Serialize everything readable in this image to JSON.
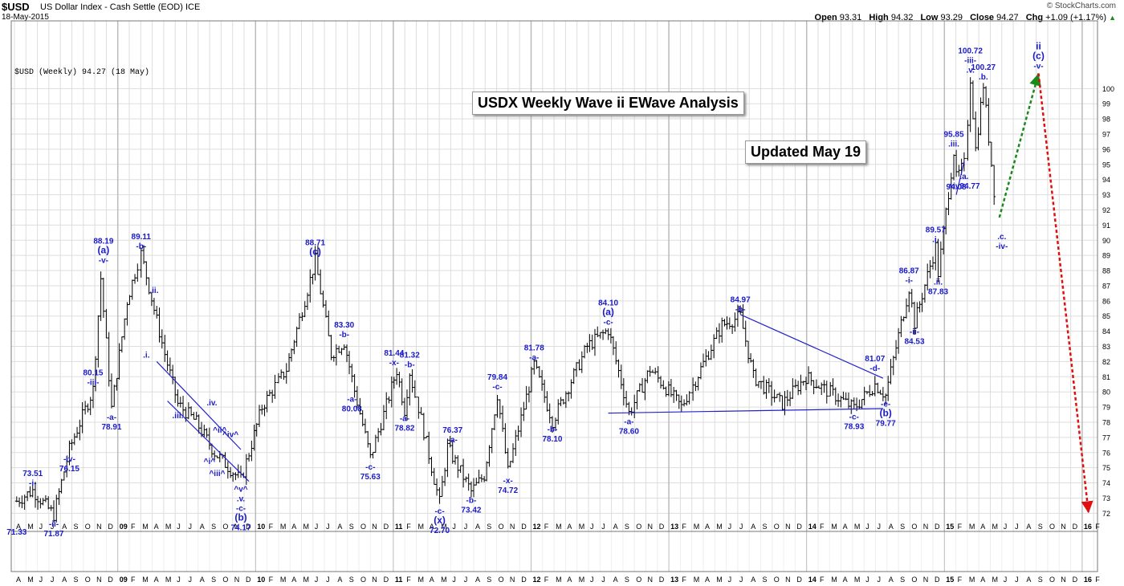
{
  "header": {
    "symbol": "$USD",
    "description": "US Dollar Index - Cash Settle (EOD)  ICE",
    "date": "18-May-2015",
    "brand": "© StockCharts.com",
    "open_label": "Open",
    "open": "93.31",
    "high_label": "High",
    "high": "94.32",
    "low_label": "Low",
    "low": "93.29",
    "close_label": "Close",
    "close": "94.27",
    "chg_label": "Chg",
    "chg": "+1.09 (+1.17%)"
  },
  "legend_text": "$USD (Weekly) 94.27 (18 May)",
  "title_box": "USDX Weekly Wave ii EWave Analysis",
  "updated_box": "Updated May 19",
  "colors": {
    "bars": "#000000",
    "labels": "#1a1acc",
    "green_arrow": "#1a8a1a",
    "red_arrow": "#e01010",
    "grid": "#dddddd",
    "panel_border": "#777777"
  },
  "chart_data": {
    "type": "ohlc-bar",
    "frequency": "weekly",
    "ylim": [
      71.33,
      101.5
    ],
    "y_ticks": [
      72,
      73,
      74,
      75,
      76,
      77,
      78,
      79,
      80,
      81,
      82,
      83,
      84,
      85,
      86,
      87,
      88,
      89,
      90,
      91,
      92,
      93,
      94,
      95,
      96,
      97,
      98,
      99,
      100
    ],
    "x_labels": [
      "A",
      "M",
      "J",
      "J",
      "A",
      "S",
      "O",
      "N",
      "D",
      "09",
      "F",
      "M",
      "A",
      "M",
      "J",
      "J",
      "A",
      "S",
      "O",
      "N",
      "D",
      "10",
      "F",
      "M",
      "A",
      "M",
      "J",
      "J",
      "A",
      "S",
      "O",
      "N",
      "D",
      "11",
      "F",
      "M",
      "A",
      "M",
      "J",
      "J",
      "A",
      "S",
      "O",
      "N",
      "D",
      "12",
      "F",
      "M",
      "A",
      "M",
      "J",
      "J",
      "A",
      "S",
      "O",
      "N",
      "D",
      "13",
      "F",
      "M",
      "A",
      "M",
      "J",
      "J",
      "A",
      "S",
      "O",
      "N",
      "D",
      "14",
      "F",
      "M",
      "A",
      "M",
      "J",
      "J",
      "A",
      "S",
      "O",
      "N",
      "D",
      "15",
      "F",
      "M",
      "A",
      "M",
      "J",
      "J",
      "A",
      "S",
      "O",
      "N",
      "D",
      "16",
      "F"
    ],
    "x_start": "2008-04",
    "anchors": [
      [
        "2008-04-07",
        72.8
      ],
      [
        "2008-05-19",
        73.5
      ],
      [
        "2008-07-14",
        71.9
      ],
      [
        "2008-08-25",
        76.2
      ],
      [
        "2008-10-27",
        80.15
      ],
      [
        "2008-11-17",
        87.5
      ],
      [
        "2008-12-15",
        78.9
      ],
      [
        "2009-01-26",
        86.0
      ],
      [
        "2009-03-02",
        89.11
      ],
      [
        "2009-05-04",
        82.5
      ],
      [
        "2009-06-08",
        79.2
      ],
      [
        "2009-07-27",
        78.0
      ],
      [
        "2009-09-14",
        76.0
      ],
      [
        "2009-11-23",
        74.17
      ],
      [
        "2010-01-18",
        79.0
      ],
      [
        "2010-03-22",
        81.5
      ],
      [
        "2010-06-07",
        88.71
      ],
      [
        "2010-07-19",
        82.5
      ],
      [
        "2010-08-23",
        83.3
      ],
      [
        "2010-09-20",
        80.08
      ],
      [
        "2010-11-01",
        75.63
      ],
      [
        "2011-01-10",
        81.44
      ],
      [
        "2011-01-31",
        78.82
      ],
      [
        "2011-02-14",
        81.32
      ],
      [
        "2011-05-02",
        72.7
      ],
      [
        "2011-05-23",
        76.37
      ],
      [
        "2011-07-25",
        73.42
      ],
      [
        "2011-08-29",
        74.5
      ],
      [
        "2011-10-03",
        79.84
      ],
      [
        "2011-10-31",
        74.72
      ],
      [
        "2012-01-09",
        81.78
      ],
      [
        "2012-02-27",
        78.1
      ],
      [
        "2012-05-28",
        83.0
      ],
      [
        "2012-07-23",
        84.1
      ],
      [
        "2012-09-17",
        78.6
      ],
      [
        "2012-11-12",
        81.5
      ],
      [
        "2013-02-04",
        79.0
      ],
      [
        "2013-05-20",
        84.4
      ],
      [
        "2013-07-08",
        84.97
      ],
      [
        "2013-08-12",
        81.0
      ],
      [
        "2013-10-28",
        79.2
      ],
      [
        "2013-12-30",
        81.0
      ],
      [
        "2014-05-05",
        78.93
      ],
      [
        "2014-06-30",
        80.5
      ],
      [
        "2014-07-28",
        79.77
      ],
      [
        "2014-09-29",
        86.87
      ],
      [
        "2014-10-13",
        84.53
      ],
      [
        "2014-12-08",
        89.57
      ],
      [
        "2014-12-15",
        87.83
      ],
      [
        "2015-01-26",
        95.85
      ],
      [
        "2015-02-02",
        94.08
      ],
      [
        "2015-02-23",
        95.0
      ],
      [
        "2015-03-09",
        100.72
      ],
      [
        "2015-03-23",
        96.0
      ],
      [
        "2015-04-13",
        100.27
      ],
      [
        "2015-05-11",
        93.29
      ],
      [
        "2015-05-18",
        94.27
      ]
    ],
    "projection_green": [
      [
        "2015-05-25",
        91.5
      ],
      [
        "2015-09-07",
        101.0
      ]
    ],
    "projection_red": [
      [
        "2015-09-07",
        101.0
      ],
      [
        "2016-01-18",
        72.0
      ]
    ],
    "trendlines": [
      [
        [
          "2009-04-13",
          82.0
        ],
        [
          "2009-11-23",
          76.2
        ]
      ],
      [
        [
          "2009-05-11",
          79.4
        ],
        [
          "2009-12-14",
          74.1
        ]
      ],
      [
        [
          "2013-07-08",
          85.1
        ],
        [
          "2014-07-21",
          80.9
        ]
      ],
      [
        [
          "2012-07-23",
          78.6
        ],
        [
          "2014-07-21",
          78.9
        ]
      ],
      [
        [
          "2015-02-02",
          93.0
        ],
        [
          "2015-02-23",
          95.2
        ]
      ]
    ],
    "annotations": [
      {
        "date": "2008-04-07",
        "price": 71.33,
        "lines": [
          "71.33"
        ],
        "pos": "below"
      },
      {
        "date": "2008-05-19",
        "price": 73.51,
        "lines": [
          "73.51",
          "-i-"
        ],
        "pos": "above"
      },
      {
        "date": "2008-07-14",
        "price": 71.87,
        "lines": [
          "-ii-",
          "71.87"
        ],
        "pos": "below"
      },
      {
        "date": "2008-08-25",
        "price": 76.15,
        "lines": [
          "-iv-",
          "76.15"
        ],
        "pos": "below"
      },
      {
        "date": "2008-10-27",
        "price": 80.15,
        "lines": [
          "80.15",
          "-iii-"
        ],
        "pos": "above"
      },
      {
        "date": "2008-11-24",
        "price": 88.19,
        "lines": [
          "88.19",
          "(a)",
          "-v-"
        ],
        "pos": "above"
      },
      {
        "date": "2008-12-15",
        "price": 78.91,
        "lines": [
          "-a-",
          "78.91"
        ],
        "pos": "below"
      },
      {
        "date": "2009-03-02",
        "price": 89.11,
        "lines": [
          "89.11",
          "-b-"
        ],
        "pos": "above"
      },
      {
        "date": "2009-04-06",
        "price": 86.2,
        "lines": [
          ".ii."
        ],
        "pos": "above"
      },
      {
        "date": "2009-03-16",
        "price": 83.0,
        "lines": [
          ".i."
        ],
        "pos": "below"
      },
      {
        "date": "2009-06-08",
        "price": 79.0,
        "lines": [
          ".iii."
        ],
        "pos": "below"
      },
      {
        "date": "2009-09-07",
        "price": 78.8,
        "lines": [
          ".iv."
        ],
        "pos": "above"
      },
      {
        "date": "2009-09-28",
        "price": 77.0,
        "lines": [
          "^ii^"
        ],
        "pos": "above"
      },
      {
        "date": "2009-08-31",
        "price": 76.0,
        "lines": [
          "^i^"
        ],
        "pos": "below"
      },
      {
        "date": "2009-10-26",
        "price": 76.7,
        "lines": [
          "^iv^"
        ],
        "pos": "above"
      },
      {
        "date": "2009-09-21",
        "price": 75.2,
        "lines": [
          "^iii^"
        ],
        "pos": "below"
      },
      {
        "date": "2009-11-23",
        "price": 74.17,
        "lines": [
          "^v^",
          ".v.",
          "-c-",
          "(b)",
          "74.17"
        ],
        "pos": "below"
      },
      {
        "date": "2010-06-07",
        "price": 88.71,
        "lines": [
          "88.71",
          "(c)"
        ],
        "pos": "above"
      },
      {
        "date": "2010-08-23",
        "price": 83.3,
        "lines": [
          "83.30",
          "-b-"
        ],
        "pos": "above"
      },
      {
        "date": "2010-09-13",
        "price": 80.08,
        "lines": [
          "-a-",
          "80.08"
        ],
        "pos": "below"
      },
      {
        "date": "2010-11-01",
        "price": 75.63,
        "lines": [
          "-c-",
          "75.63"
        ],
        "pos": "below"
      },
      {
        "date": "2011-01-03",
        "price": 81.44,
        "lines": [
          "81.44",
          "-x-"
        ],
        "pos": "above"
      },
      {
        "date": "2011-01-31",
        "price": 78.82,
        "lines": [
          "-a-",
          "78.82"
        ],
        "pos": "below"
      },
      {
        "date": "2011-02-14",
        "price": 81.32,
        "lines": [
          "81.32",
          "-b-"
        ],
        "pos": "above"
      },
      {
        "date": "2011-05-02",
        "price": 72.7,
        "lines": [
          "-c-",
          "(x)",
          "72.70"
        ],
        "pos": "below"
      },
      {
        "date": "2011-06-06",
        "price": 76.37,
        "lines": [
          "76.37",
          "-a-"
        ],
        "pos": "above"
      },
      {
        "date": "2011-07-25",
        "price": 73.42,
        "lines": [
          "-b-",
          "73.42"
        ],
        "pos": "below"
      },
      {
        "date": "2011-10-03",
        "price": 79.84,
        "lines": [
          "79.84",
          "-c-"
        ],
        "pos": "above"
      },
      {
        "date": "2011-10-31",
        "price": 74.72,
        "lines": [
          "-x-",
          "74.72"
        ],
        "pos": "below"
      },
      {
        "date": "2012-01-09",
        "price": 81.78,
        "lines": [
          "81.78",
          "-a-"
        ],
        "pos": "above"
      },
      {
        "date": "2012-02-27",
        "price": 78.1,
        "lines": [
          "-b-",
          "78.10"
        ],
        "pos": "below"
      },
      {
        "date": "2012-07-23",
        "price": 84.1,
        "lines": [
          "84.10",
          "(a)",
          "-c-"
        ],
        "pos": "above"
      },
      {
        "date": "2012-09-17",
        "price": 78.6,
        "lines": [
          "-a-",
          "78.60"
        ],
        "pos": "below"
      },
      {
        "date": "2013-07-08",
        "price": 84.97,
        "lines": [
          "84.97",
          "-b-"
        ],
        "pos": "above"
      },
      {
        "date": "2014-05-05",
        "price": 78.93,
        "lines": [
          "-c-",
          "78.93"
        ],
        "pos": "below"
      },
      {
        "date": "2014-06-30",
        "price": 81.07,
        "lines": [
          "81.07",
          "-d-"
        ],
        "pos": "above"
      },
      {
        "date": "2014-07-28",
        "price": 79.77,
        "lines": [
          "-e-",
          "(b)",
          "79.77"
        ],
        "pos": "below"
      },
      {
        "date": "2014-09-29",
        "price": 86.87,
        "lines": [
          "86.87",
          "-i-"
        ],
        "pos": "above"
      },
      {
        "date": "2014-10-13",
        "price": 84.53,
        "lines": [
          "-ii-",
          "84.53"
        ],
        "pos": "below"
      },
      {
        "date": "2014-12-08",
        "price": 89.57,
        "lines": [
          "89.57",
          ".i."
        ],
        "pos": "above"
      },
      {
        "date": "2014-12-15",
        "price": 87.83,
        "lines": [
          ".ii.",
          "87.83"
        ],
        "pos": "below"
      },
      {
        "date": "2015-01-26",
        "price": 95.85,
        "lines": [
          "95.85",
          ".iii."
        ],
        "pos": "above"
      },
      {
        "date": "2015-02-02",
        "price": 94.08,
        "lines": [
          "94.08"
        ],
        "pos": "below"
      },
      {
        "date": "2015-02-23",
        "price": 94.77,
        "lines": [
          ".a.",
          "˄iv94.77"
        ],
        "pos": "below"
      },
      {
        "date": "2015-03-09",
        "price": 100.72,
        "lines": [
          "100.72",
          "-iii-",
          ".v."
        ],
        "pos": "above"
      },
      {
        "date": "2015-04-13",
        "price": 100.27,
        "lines": [
          "100.27",
          ".b."
        ],
        "pos": "above"
      },
      {
        "date": "2015-06-01",
        "price": 90.8,
        "lines": [
          ".c.",
          "-iv-"
        ],
        "pos": "below"
      },
      {
        "date": "2015-09-07",
        "price": 101.0,
        "lines": [
          "ii",
          "(c)",
          "-v-"
        ],
        "pos": "above"
      }
    ]
  }
}
